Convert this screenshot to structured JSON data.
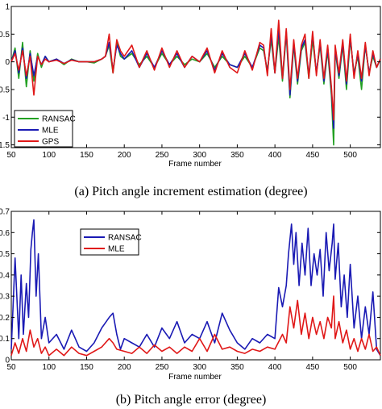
{
  "chart_data": [
    {
      "type": "line",
      "caption": "(a)   Pitch angle increment estimation (degree)",
      "xlabel": "Frame number",
      "ylabel": "",
      "xlim": [
        50,
        540
      ],
      "ylim": [
        -1.55,
        1.0
      ],
      "xticks": [
        50,
        100,
        150,
        200,
        250,
        300,
        350,
        400,
        450,
        500
      ],
      "yticks": [
        -1.5,
        -1,
        -0.5,
        0,
        0.5,
        1
      ],
      "ytick_labels": [
        "-1.5",
        "-1",
        "-0.5",
        "0",
        "0.5",
        "1"
      ],
      "legend_position": "bottom-left",
      "series": [
        {
          "name": "RANSAC",
          "color": "#22a022",
          "x": [
            50,
            55,
            60,
            65,
            70,
            75,
            80,
            85,
            90,
            95,
            100,
            110,
            120,
            130,
            140,
            150,
            160,
            170,
            175,
            180,
            185,
            190,
            195,
            200,
            210,
            220,
            230,
            240,
            250,
            260,
            270,
            280,
            290,
            300,
            310,
            320,
            330,
            340,
            350,
            360,
            370,
            380,
            385,
            390,
            395,
            400,
            405,
            410,
            415,
            420,
            425,
            430,
            435,
            440,
            445,
            450,
            455,
            460,
            465,
            470,
            475,
            478,
            480,
            485,
            490,
            495,
            500,
            505,
            510,
            515,
            520,
            525,
            530,
            535,
            540
          ],
          "values": [
            0,
            0.25,
            -0.3,
            0.35,
            -0.45,
            0.2,
            -0.35,
            0.15,
            -0.1,
            0.1,
            0,
            0.05,
            -0.05,
            0.05,
            0,
            0,
            -0.02,
            0.05,
            0.1,
            0.3,
            -0.2,
            0.35,
            0.1,
            0.05,
            0.15,
            -0.05,
            0.1,
            -0.1,
            0.15,
            -0.05,
            0.1,
            -0.05,
            0.05,
            0,
            0.15,
            -0.1,
            0.1,
            -0.05,
            -0.1,
            0.1,
            -0.1,
            0.25,
            0.2,
            -0.15,
            0.4,
            -0.2,
            0.45,
            -0.35,
            0.5,
            -0.65,
            0.3,
            -0.4,
            0.2,
            0.35,
            -0.3,
            0.4,
            -0.2,
            0.3,
            -0.4,
            0.2,
            -0.6,
            -1.5,
            0.2,
            -0.3,
            0.3,
            -0.5,
            0.4,
            -0.2,
            0.1,
            -0.5,
            0.3,
            -0.2,
            0.1,
            -0.1,
            0.05
          ]
        },
        {
          "name": "MLE",
          "color": "#1a1ab4",
          "x": [
            50,
            55,
            60,
            65,
            70,
            75,
            80,
            85,
            90,
            95,
            100,
            110,
            120,
            130,
            140,
            150,
            160,
            170,
            175,
            180,
            185,
            190,
            195,
            200,
            210,
            220,
            230,
            240,
            250,
            260,
            270,
            280,
            290,
            300,
            310,
            320,
            330,
            340,
            350,
            360,
            370,
            380,
            385,
            390,
            395,
            400,
            405,
            410,
            415,
            420,
            425,
            430,
            435,
            440,
            445,
            450,
            455,
            460,
            465,
            470,
            475,
            478,
            480,
            485,
            490,
            495,
            500,
            505,
            510,
            515,
            520,
            525,
            530,
            535,
            540
          ],
          "values": [
            0,
            0.2,
            -0.2,
            0.25,
            -0.3,
            0.15,
            -0.25,
            0.1,
            -0.05,
            0.1,
            0,
            0.05,
            -0.03,
            0.04,
            0,
            0,
            0,
            0.05,
            0.1,
            0.35,
            -0.15,
            0.3,
            0.15,
            0.05,
            0.2,
            -0.1,
            0.15,
            -0.1,
            0.2,
            -0.05,
            0.15,
            -0.1,
            0.1,
            0,
            0.2,
            -0.15,
            0.15,
            -0.05,
            -0.1,
            0.15,
            -0.1,
            0.3,
            0.25,
            -0.2,
            0.5,
            -0.2,
            0.6,
            -0.3,
            0.55,
            -0.6,
            0.35,
            -0.35,
            0.25,
            0.4,
            -0.25,
            0.5,
            -0.2,
            0.35,
            -0.35,
            0.25,
            -0.5,
            -1.2,
            0.25,
            -0.25,
            0.35,
            -0.4,
            0.45,
            -0.25,
            0.15,
            -0.35,
            0.3,
            -0.2,
            0.15,
            -0.1,
            0.05
          ]
        },
        {
          "name": "GPS",
          "color": "#e01818",
          "x": [
            50,
            55,
            60,
            65,
            70,
            75,
            80,
            85,
            90,
            95,
            100,
            110,
            120,
            130,
            140,
            150,
            160,
            170,
            175,
            180,
            185,
            190,
            195,
            200,
            210,
            220,
            230,
            240,
            250,
            260,
            270,
            280,
            290,
            300,
            310,
            320,
            330,
            340,
            350,
            360,
            370,
            380,
            385,
            390,
            395,
            400,
            405,
            410,
            415,
            420,
            425,
            430,
            435,
            440,
            445,
            450,
            455,
            460,
            465,
            470,
            475,
            478,
            480,
            485,
            490,
            495,
            500,
            505,
            510,
            515,
            520,
            525,
            530,
            535,
            540
          ],
          "values": [
            0,
            0.15,
            -0.15,
            0.2,
            -0.25,
            0.1,
            -0.6,
            0.1,
            -0.05,
            0.05,
            0,
            0.03,
            -0.03,
            0.03,
            0,
            0,
            0,
            0.05,
            0.1,
            0.5,
            -0.2,
            0.4,
            0.2,
            0.1,
            0.3,
            -0.1,
            0.2,
            -0.15,
            0.25,
            -0.1,
            0.2,
            -0.1,
            0.1,
            0,
            0.25,
            -0.2,
            0.2,
            -0.1,
            -0.2,
            0.2,
            -0.15,
            0.35,
            0.3,
            -0.25,
            0.6,
            -0.2,
            0.75,
            -0.3,
            0.6,
            -0.5,
            0.4,
            -0.3,
            0.3,
            0.5,
            -0.3,
            0.55,
            -0.25,
            0.4,
            -0.3,
            0.3,
            -0.45,
            -1.05,
            0.3,
            -0.2,
            0.4,
            -0.35,
            0.5,
            -0.3,
            0.2,
            -0.3,
            0.35,
            -0.25,
            0.2,
            -0.1,
            0.05
          ]
        }
      ]
    },
    {
      "type": "line",
      "caption": "(b)   Pitch angle error (degree)",
      "xlabel": "Frame number",
      "ylabel": "",
      "xlim": [
        50,
        540
      ],
      "ylim": [
        0,
        0.7
      ],
      "xticks": [
        50,
        100,
        150,
        200,
        250,
        300,
        350,
        400,
        450,
        500
      ],
      "yticks": [
        0,
        0.1,
        0.2,
        0.3,
        0.4,
        0.5,
        0.6,
        0.7
      ],
      "ytick_labels": [
        "0",
        "0.1",
        "0.2",
        "0.3",
        "0.4",
        "0.5",
        "0.6",
        "0.7"
      ],
      "legend_position": "top-center",
      "series": [
        {
          "name": "RANSAC",
          "color": "#1a1ab4",
          "x": [
            50,
            55,
            60,
            63,
            66,
            70,
            73,
            76,
            78,
            80,
            83,
            86,
            90,
            95,
            100,
            110,
            120,
            130,
            140,
            150,
            160,
            170,
            180,
            185,
            190,
            195,
            200,
            210,
            220,
            230,
            240,
            250,
            260,
            270,
            280,
            290,
            300,
            310,
            320,
            330,
            340,
            350,
            360,
            370,
            380,
            390,
            400,
            405,
            410,
            415,
            418,
            422,
            425,
            428,
            432,
            436,
            440,
            444,
            448,
            452,
            456,
            460,
            464,
            468,
            472,
            476,
            478,
            480,
            484,
            488,
            492,
            496,
            500,
            505,
            510,
            515,
            520,
            525,
            530,
            535,
            540
          ],
          "values": [
            0.05,
            0.48,
            0.1,
            0.4,
            0.12,
            0.36,
            0.2,
            0.52,
            0.6,
            0.66,
            0.3,
            0.5,
            0.1,
            0.2,
            0.08,
            0.12,
            0.05,
            0.14,
            0.06,
            0.04,
            0.08,
            0.15,
            0.2,
            0.22,
            0.12,
            0.05,
            0.1,
            0.08,
            0.06,
            0.12,
            0.06,
            0.15,
            0.1,
            0.18,
            0.08,
            0.12,
            0.1,
            0.18,
            0.08,
            0.22,
            0.14,
            0.08,
            0.05,
            0.1,
            0.08,
            0.12,
            0.1,
            0.34,
            0.25,
            0.35,
            0.5,
            0.64,
            0.45,
            0.6,
            0.35,
            0.55,
            0.4,
            0.62,
            0.35,
            0.5,
            0.4,
            0.52,
            0.3,
            0.6,
            0.42,
            0.55,
            0.64,
            0.38,
            0.55,
            0.25,
            0.4,
            0.2,
            0.45,
            0.15,
            0.3,
            0.1,
            0.25,
            0.12,
            0.32,
            0.05,
            0.02
          ]
        },
        {
          "name": "MLE",
          "color": "#e01818",
          "x": [
            50,
            55,
            60,
            65,
            70,
            75,
            80,
            85,
            90,
            95,
            100,
            110,
            120,
            130,
            140,
            150,
            160,
            170,
            180,
            185,
            190,
            200,
            210,
            220,
            230,
            240,
            250,
            260,
            270,
            280,
            290,
            300,
            310,
            320,
            330,
            340,
            350,
            360,
            370,
            380,
            390,
            400,
            410,
            415,
            420,
            425,
            430,
            435,
            440,
            445,
            450,
            455,
            460,
            465,
            470,
            475,
            478,
            480,
            485,
            490,
            495,
            500,
            505,
            510,
            515,
            520,
            525,
            530,
            535,
            540
          ],
          "values": [
            0.02,
            0.08,
            0.03,
            0.1,
            0.04,
            0.14,
            0.06,
            0.1,
            0.03,
            0.06,
            0.02,
            0.05,
            0.02,
            0.06,
            0.03,
            0.02,
            0.04,
            0.06,
            0.1,
            0.08,
            0.05,
            0.04,
            0.03,
            0.06,
            0.03,
            0.07,
            0.04,
            0.06,
            0.03,
            0.06,
            0.04,
            0.1,
            0.04,
            0.12,
            0.05,
            0.06,
            0.04,
            0.03,
            0.05,
            0.04,
            0.06,
            0.05,
            0.12,
            0.08,
            0.25,
            0.15,
            0.28,
            0.12,
            0.22,
            0.1,
            0.2,
            0.12,
            0.18,
            0.1,
            0.2,
            0.15,
            0.3,
            0.1,
            0.18,
            0.08,
            0.14,
            0.05,
            0.1,
            0.04,
            0.1,
            0.05,
            0.12,
            0.04,
            0.06,
            0.02
          ]
        }
      ]
    }
  ]
}
